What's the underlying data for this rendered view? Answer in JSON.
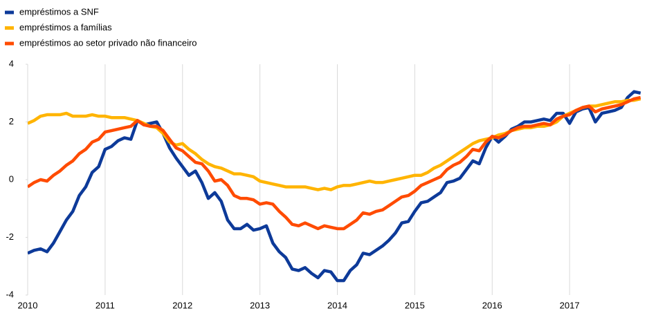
{
  "chart_data": {
    "type": "line",
    "x": [
      2010,
      2010.083,
      2010.167,
      2010.25,
      2010.333,
      2010.417,
      2010.5,
      2010.583,
      2010.667,
      2010.75,
      2010.833,
      2010.917,
      2011,
      2011.083,
      2011.167,
      2011.25,
      2011.333,
      2011.417,
      2011.5,
      2011.583,
      2011.667,
      2011.75,
      2011.833,
      2011.917,
      2012,
      2012.083,
      2012.167,
      2012.25,
      2012.333,
      2012.417,
      2012.5,
      2012.583,
      2012.667,
      2012.75,
      2012.833,
      2012.917,
      2013,
      2013.083,
      2013.167,
      2013.25,
      2013.333,
      2013.417,
      2013.5,
      2013.583,
      2013.667,
      2013.75,
      2013.833,
      2013.917,
      2014,
      2014.083,
      2014.167,
      2014.25,
      2014.333,
      2014.417,
      2014.5,
      2014.583,
      2014.667,
      2014.75,
      2014.833,
      2014.917,
      2015,
      2015.083,
      2015.167,
      2015.25,
      2015.333,
      2015.417,
      2015.5,
      2015.583,
      2015.667,
      2015.75,
      2015.833,
      2015.917,
      2016,
      2016.083,
      2016.167,
      2016.25,
      2016.333,
      2016.417,
      2016.5,
      2016.583,
      2016.667,
      2016.75,
      2016.833,
      2016.917,
      2017,
      2017.083,
      2017.167,
      2017.25,
      2017.333,
      2017.417,
      2017.5,
      2017.583,
      2017.667,
      2017.75,
      2017.833,
      2017.917
    ],
    "series": [
      {
        "name": "empréstimos a SNF",
        "color": "#0d3a99",
        "values": [
          -2.55,
          -2.45,
          -2.4,
          -2.5,
          -2.2,
          -1.8,
          -1.4,
          -1.1,
          -0.55,
          -0.25,
          0.25,
          0.45,
          1.05,
          1.15,
          1.35,
          1.45,
          1.4,
          2.05,
          1.9,
          1.95,
          2.0,
          1.6,
          1.1,
          0.75,
          0.45,
          0.15,
          0.3,
          -0.1,
          -0.65,
          -0.45,
          -0.75,
          -1.4,
          -1.7,
          -1.7,
          -1.55,
          -1.75,
          -1.7,
          -1.6,
          -2.2,
          -2.5,
          -2.7,
          -3.1,
          -3.15,
          -3.05,
          -3.25,
          -3.4,
          -3.15,
          -3.2,
          -3.5,
          -3.5,
          -3.15,
          -2.95,
          -2.55,
          -2.6,
          -2.45,
          -2.3,
          -2.1,
          -1.85,
          -1.5,
          -1.45,
          -1.1,
          -0.8,
          -0.75,
          -0.6,
          -0.45,
          -0.1,
          -0.05,
          0.05,
          0.35,
          0.65,
          0.55,
          1.1,
          1.5,
          1.3,
          1.5,
          1.75,
          1.85,
          2.0,
          2.0,
          2.05,
          2.1,
          2.05,
          2.3,
          2.3,
          1.95,
          2.35,
          2.45,
          2.5,
          2.0,
          2.3,
          2.35,
          2.4,
          2.5,
          2.85,
          3.05,
          3.0
        ]
      },
      {
        "name": "empréstimos a famílias",
        "color": "#ffb400",
        "values": [
          1.95,
          2.05,
          2.2,
          2.25,
          2.25,
          2.25,
          2.3,
          2.2,
          2.2,
          2.2,
          2.25,
          2.2,
          2.2,
          2.15,
          2.15,
          2.15,
          2.1,
          2.05,
          1.95,
          1.85,
          1.8,
          1.6,
          1.3,
          1.2,
          1.25,
          1.05,
          0.9,
          0.7,
          0.55,
          0.45,
          0.4,
          0.3,
          0.2,
          0.2,
          0.15,
          0.1,
          -0.05,
          -0.1,
          -0.15,
          -0.2,
          -0.25,
          -0.25,
          -0.25,
          -0.25,
          -0.3,
          -0.35,
          -0.3,
          -0.35,
          -0.25,
          -0.2,
          -0.2,
          -0.15,
          -0.1,
          -0.05,
          -0.1,
          -0.1,
          -0.05,
          0,
          0.05,
          0.1,
          0.15,
          0.15,
          0.25,
          0.4,
          0.5,
          0.65,
          0.8,
          0.95,
          1.1,
          1.25,
          1.35,
          1.4,
          1.45,
          1.55,
          1.6,
          1.7,
          1.75,
          1.8,
          1.8,
          1.85,
          1.85,
          1.9,
          2.0,
          2.2,
          2.3,
          2.4,
          2.5,
          2.55,
          2.55,
          2.6,
          2.65,
          2.7,
          2.7,
          2.75,
          2.75,
          2.8
        ]
      },
      {
        "name": "empréstimos ao setor privado não financeiro",
        "color": "#ff4b00",
        "values": [
          -0.25,
          -0.1,
          0,
          -0.05,
          0.15,
          0.3,
          0.5,
          0.65,
          0.9,
          1.05,
          1.3,
          1.4,
          1.65,
          1.7,
          1.75,
          1.8,
          1.85,
          2.05,
          1.9,
          1.85,
          1.85,
          1.7,
          1.4,
          1.1,
          1.0,
          0.8,
          0.6,
          0.55,
          0.3,
          -0.05,
          0,
          -0.2,
          -0.55,
          -0.65,
          -0.65,
          -0.7,
          -0.85,
          -0.8,
          -0.85,
          -1.1,
          -1.3,
          -1.55,
          -1.6,
          -1.5,
          -1.6,
          -1.7,
          -1.6,
          -1.65,
          -1.7,
          -1.7,
          -1.55,
          -1.4,
          -1.15,
          -1.2,
          -1.1,
          -1.05,
          -0.9,
          -0.75,
          -0.6,
          -0.55,
          -0.4,
          -0.2,
          -0.1,
          0,
          0.1,
          0.35,
          0.5,
          0.6,
          0.8,
          1.05,
          1.0,
          1.3,
          1.5,
          1.45,
          1.55,
          1.7,
          1.8,
          1.85,
          1.85,
          1.9,
          1.95,
          1.9,
          2.1,
          2.2,
          2.25,
          2.4,
          2.5,
          2.55,
          2.35,
          2.45,
          2.5,
          2.55,
          2.6,
          2.7,
          2.8,
          2.85
        ]
      }
    ],
    "xlim": [
      2010,
      2018
    ],
    "xticks": [
      2010,
      2011,
      2012,
      2013,
      2014,
      2015,
      2016,
      2017
    ],
    "ylim": [
      -4,
      4
    ],
    "yticks": [
      -4,
      -2,
      0,
      2,
      4
    ],
    "grid": "x"
  }
}
